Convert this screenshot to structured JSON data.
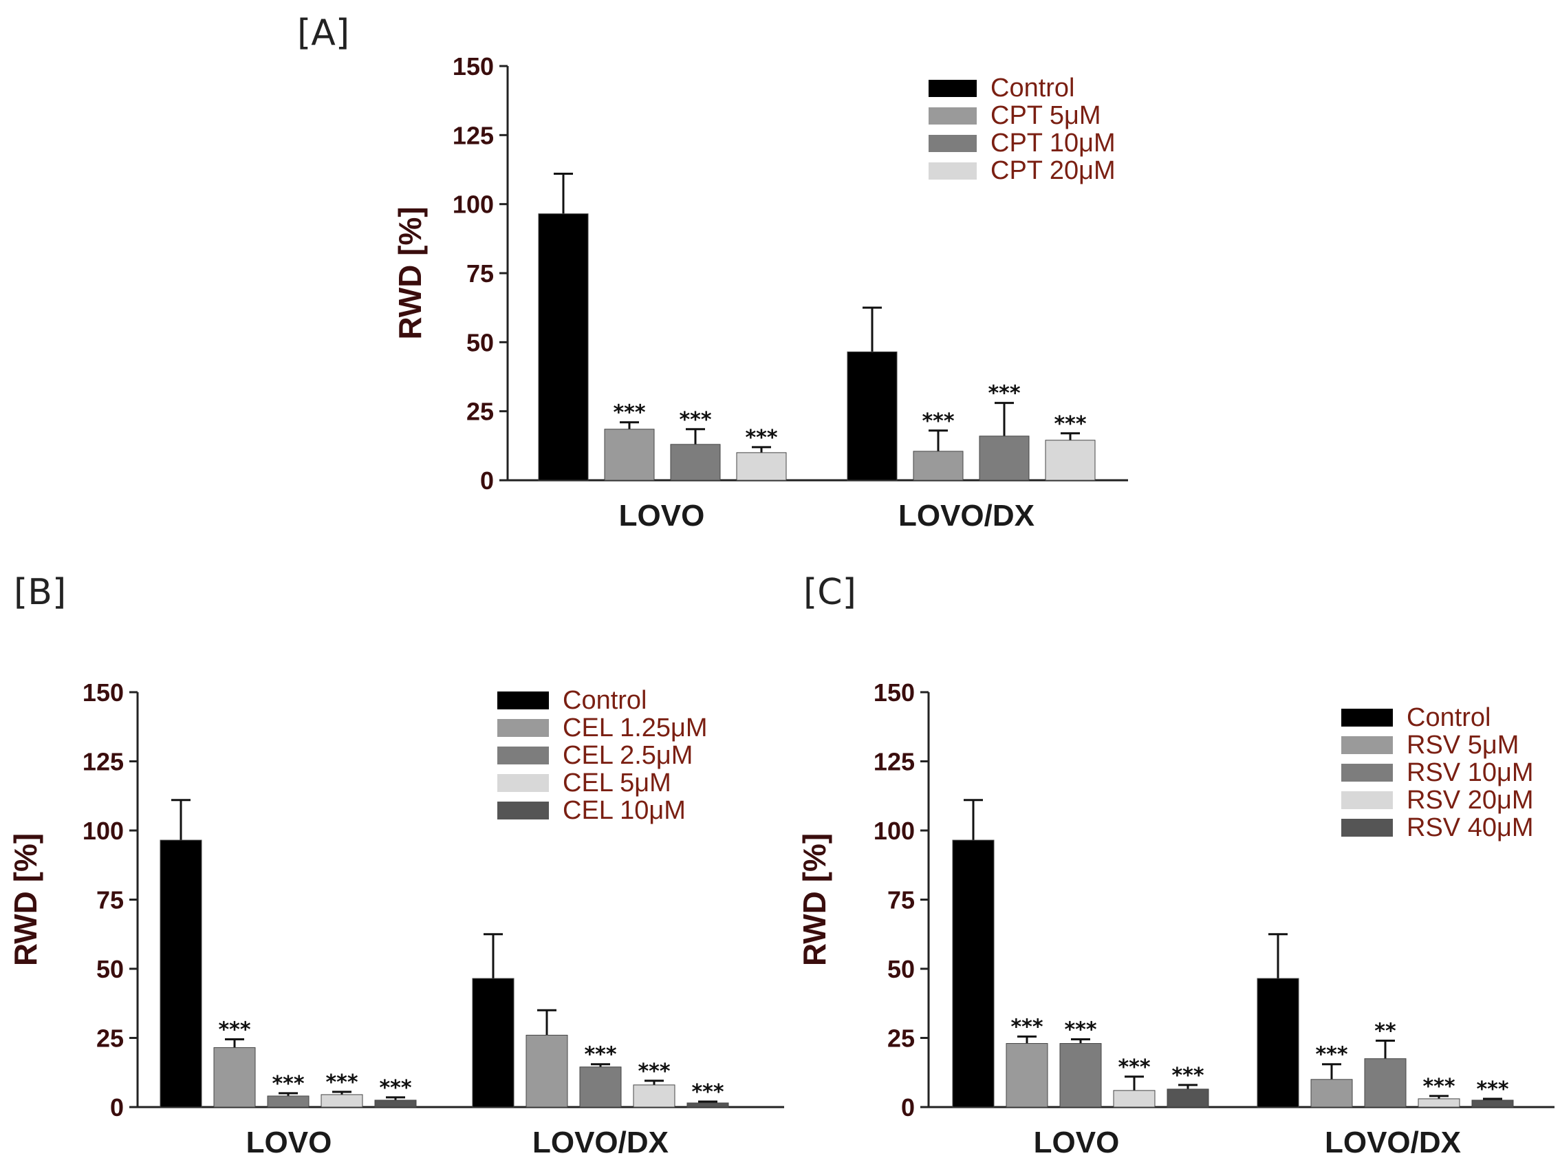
{
  "chart_data": [
    {
      "id": "A",
      "panel_label": "[A]",
      "type": "bar",
      "categories": [
        "LOVO",
        "LOVO/DX"
      ],
      "ylabel": "RWD [%]",
      "xlabel": "",
      "ylim": [
        0,
        150
      ],
      "yticks": [
        0,
        25,
        50,
        75,
        100,
        125,
        150
      ],
      "legend_position": "top-right",
      "series": [
        {
          "name": "Control",
          "color": "#000000",
          "values": [
            96.5,
            46.5
          ],
          "errors": [
            14.5,
            16
          ],
          "sig": [
            "",
            ""
          ]
        },
        {
          "name": "CPT 5μM",
          "color": "#9a9a9a",
          "values": [
            18.5,
            10.5
          ],
          "errors": [
            2.5,
            7.5
          ],
          "sig": [
            "***",
            "***"
          ]
        },
        {
          "name": "CPT 10μM",
          "color": "#7d7d7d",
          "values": [
            13,
            16
          ],
          "errors": [
            5.5,
            12
          ],
          "sig": [
            "***",
            "***"
          ]
        },
        {
          "name": "CPT 20μM",
          "color": "#d8d8d8",
          "values": [
            10,
            14.5
          ],
          "errors": [
            2,
            2.5
          ],
          "sig": [
            "***",
            "***"
          ]
        }
      ]
    },
    {
      "id": "B",
      "panel_label": "[B]",
      "type": "bar",
      "categories": [
        "LOVO",
        "LOVO/DX"
      ],
      "ylabel": "RWD [%]",
      "xlabel": "",
      "ylim": [
        0,
        150
      ],
      "yticks": [
        0,
        25,
        50,
        75,
        100,
        125,
        150
      ],
      "legend_position": "top-right",
      "series": [
        {
          "name": "Control",
          "color": "#000000",
          "values": [
            96.5,
            46.5
          ],
          "errors": [
            14.5,
            16
          ],
          "sig": [
            "",
            ""
          ]
        },
        {
          "name": "CEL 1.25μM",
          "color": "#9a9a9a",
          "values": [
            21.5,
            26
          ],
          "errors": [
            3,
            9
          ],
          "sig": [
            "***",
            ""
          ]
        },
        {
          "name": "CEL 2.5μM",
          "color": "#7d7d7d",
          "values": [
            4,
            14.5
          ],
          "errors": [
            1,
            1
          ],
          "sig": [
            "***",
            "***"
          ]
        },
        {
          "name": "CEL 5μM",
          "color": "#d8d8d8",
          "values": [
            4.5,
            8
          ],
          "errors": [
            1,
            1.5
          ],
          "sig": [
            "***",
            "***"
          ]
        },
        {
          "name": "CEL 10μM",
          "color": "#555555",
          "values": [
            2.5,
            1.5
          ],
          "errors": [
            1,
            0.5
          ],
          "sig": [
            "***",
            "***"
          ]
        }
      ]
    },
    {
      "id": "C",
      "panel_label": "[C]",
      "type": "bar",
      "categories": [
        "LOVO",
        "LOVO/DX"
      ],
      "ylabel": "RWD [%]",
      "xlabel": "",
      "ylim": [
        0,
        150
      ],
      "yticks": [
        0,
        25,
        50,
        75,
        100,
        125,
        150
      ],
      "legend_position": "top-right",
      "series": [
        {
          "name": "Control",
          "color": "#000000",
          "values": [
            96.5,
            46.5
          ],
          "errors": [
            14.5,
            16
          ],
          "sig": [
            "",
            ""
          ]
        },
        {
          "name": "RSV 5μM",
          "color": "#9a9a9a",
          "values": [
            23,
            10
          ],
          "errors": [
            2.5,
            5.5
          ],
          "sig": [
            "***",
            "***"
          ]
        },
        {
          "name": "RSV 10μM",
          "color": "#7d7d7d",
          "values": [
            23,
            17.5
          ],
          "errors": [
            1.5,
            6.5
          ],
          "sig": [
            "***",
            "**"
          ]
        },
        {
          "name": "RSV 20μM",
          "color": "#d8d8d8",
          "values": [
            6,
            3
          ],
          "errors": [
            5,
            1
          ],
          "sig": [
            "***",
            "***"
          ]
        },
        {
          "name": "RSV 40μM",
          "color": "#555555",
          "values": [
            6.5,
            2.5
          ],
          "errors": [
            1.5,
            0.5
          ],
          "sig": [
            "***",
            "***"
          ]
        }
      ]
    }
  ]
}
